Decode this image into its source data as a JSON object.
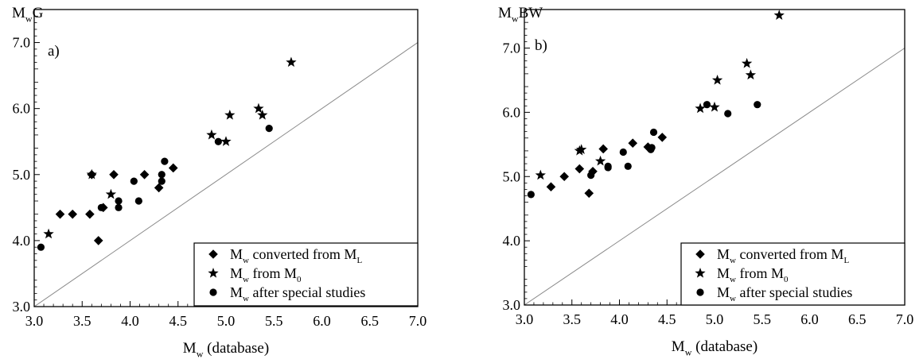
{
  "chart_data": [
    {
      "type": "scatter",
      "panel_label": "a)",
      "ylabel_main": "M",
      "ylabel_sub": "w",
      "ylabel_rest": "G",
      "xlabel_main": "M",
      "xlabel_sub": "w",
      "xlabel_rest": " (database)",
      "xlim": [
        3.0,
        7.0
      ],
      "ylim": [
        3.0,
        7.5
      ],
      "xticks": [
        "3.0",
        "3.5",
        "4.0",
        "4.5",
        "5.0",
        "5.5",
        "6.0",
        "6.5",
        "7.0"
      ],
      "yticks": [
        "3.0",
        "4.0",
        "5.0",
        "6.0",
        "7.0"
      ],
      "reference_line": [
        [
          3.0,
          3.0
        ],
        [
          7.0,
          7.0
        ]
      ],
      "legend": {
        "placement": "bottom-right",
        "entries": [
          {
            "marker": "diamond",
            "main": "M",
            "sub": "w",
            "text": " converted from M",
            "tail_sub": "L"
          },
          {
            "marker": "star",
            "main": "M",
            "sub": "w",
            "text": " from M",
            "tail_sub": "0"
          },
          {
            "marker": "circle",
            "main": "M",
            "sub": "w",
            "text": "  after special studies",
            "tail_sub": ""
          }
        ]
      },
      "series": [
        {
          "marker": "diamond",
          "points": [
            [
              3.27,
              4.4
            ],
            [
              3.4,
              4.4
            ],
            [
              3.58,
              4.4
            ],
            [
              3.6,
              5.0
            ],
            [
              3.67,
              4.0
            ],
            [
              3.72,
              4.5
            ],
            [
              3.83,
              5.0
            ],
            [
              4.15,
              5.0
            ],
            [
              4.3,
              4.8
            ],
            [
              4.45,
              5.1
            ]
          ]
        },
        {
          "marker": "star",
          "points": [
            [
              3.15,
              4.1
            ],
            [
              3.6,
              5.0
            ],
            [
              3.8,
              4.7
            ],
            [
              4.85,
              5.6
            ],
            [
              5.0,
              5.5
            ],
            [
              5.04,
              5.9
            ],
            [
              5.34,
              6.0
            ],
            [
              5.38,
              5.9
            ],
            [
              5.68,
              6.7
            ]
          ]
        },
        {
          "marker": "circle",
          "points": [
            [
              3.07,
              3.9
            ],
            [
              3.7,
              4.5
            ],
            [
              3.88,
              4.6
            ],
            [
              3.88,
              4.5
            ],
            [
              4.04,
              4.9
            ],
            [
              4.09,
              4.6
            ],
            [
              4.33,
              4.9
            ],
            [
              4.33,
              5.0
            ],
            [
              4.36,
              5.2
            ],
            [
              4.92,
              5.5
            ],
            [
              5.45,
              5.7
            ]
          ]
        }
      ]
    },
    {
      "type": "scatter",
      "panel_label": "b)",
      "ylabel_main": "M",
      "ylabel_sub": "w",
      "ylabel_rest": "BW",
      "xlabel_main": "M",
      "xlabel_sub": "w",
      "xlabel_rest": " (database)",
      "xlim": [
        3.0,
        7.0
      ],
      "ylim": [
        3.0,
        7.6
      ],
      "xticks": [
        "3.0",
        "3.5",
        "4.0",
        "4.5",
        "5.0",
        "5.5",
        "6.0",
        "6.5",
        "7.0"
      ],
      "yticks": [
        "3.0",
        "4.0",
        "5.0",
        "6.0",
        "7.0"
      ],
      "reference_line": [
        [
          3.0,
          3.0
        ],
        [
          7.0,
          7.0
        ]
      ],
      "legend": {
        "placement": "bottom-right",
        "entries": [
          {
            "marker": "diamond",
            "main": "M",
            "sub": "w",
            "text": " converted from M",
            "tail_sub": "L"
          },
          {
            "marker": "star",
            "main": "M",
            "sub": "w",
            "text": " from M",
            "tail_sub": "0"
          },
          {
            "marker": "circle",
            "main": "M",
            "sub": "w",
            "text": "  after special studies",
            "tail_sub": ""
          }
        ]
      },
      "series": [
        {
          "marker": "diamond",
          "points": [
            [
              3.28,
              4.84
            ],
            [
              3.42,
              5.0
            ],
            [
              3.58,
              5.12
            ],
            [
              3.68,
              4.74
            ],
            [
              3.72,
              5.08
            ],
            [
              3.83,
              5.43
            ],
            [
              4.14,
              5.52
            ],
            [
              4.3,
              5.46
            ],
            [
              4.45,
              5.61
            ]
          ]
        },
        {
          "marker": "star",
          "points": [
            [
              3.17,
              5.02
            ],
            [
              3.58,
              5.4
            ],
            [
              3.6,
              5.42
            ],
            [
              3.8,
              5.24
            ],
            [
              4.85,
              6.06
            ],
            [
              5.0,
              6.08
            ],
            [
              5.03,
              6.5
            ],
            [
              5.34,
              6.76
            ],
            [
              5.38,
              6.58
            ],
            [
              5.68,
              7.51
            ]
          ]
        },
        {
          "marker": "circle",
          "points": [
            [
              3.07,
              4.72
            ],
            [
              3.7,
              5.02
            ],
            [
              3.88,
              5.14
            ],
            [
              3.88,
              5.16
            ],
            [
              4.04,
              5.38
            ],
            [
              4.09,
              5.16
            ],
            [
              4.33,
              5.42
            ],
            [
              4.34,
              5.45
            ],
            [
              4.36,
              5.69
            ],
            [
              4.92,
              6.12
            ],
            [
              5.14,
              5.98
            ],
            [
              5.45,
              6.12
            ]
          ]
        }
      ]
    }
  ]
}
